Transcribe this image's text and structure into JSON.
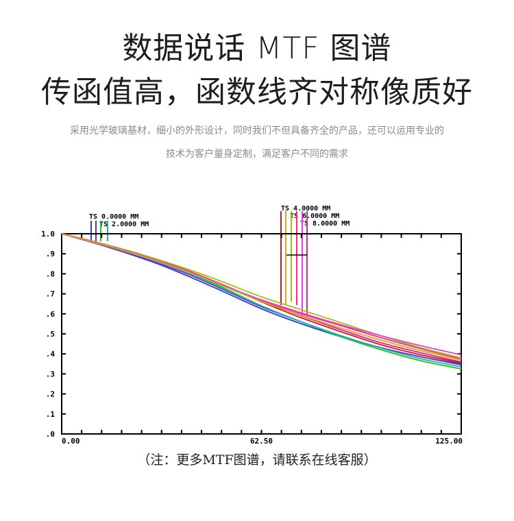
{
  "header": {
    "line1": "数据说话 MTF 图谱",
    "line2": "传函值高，函数线齐对称像质好"
  },
  "description": {
    "line1": "采用光学玻璃基材，细小的外形设计，同时我们不但具备齐全的产品，还可以运用专业的",
    "line2": "技术为客户量身定制，满足客户不同的需求"
  },
  "note": "（注：更多MTF图谱，请联系在线客服）",
  "chart_data": {
    "type": "line",
    "xlim": [
      0,
      125
    ],
    "ylim": [
      0,
      1.0
    ],
    "x_ticks": [
      "0.00",
      "62.50",
      "125.00"
    ],
    "y_ticks": [
      "1.0",
      ".9",
      ".8",
      ".7",
      ".6",
      ".5",
      ".4",
      ".3",
      ".2",
      ".1",
      ".0"
    ],
    "legend_left": [
      "TS 0.0000 MM",
      "TS 2.0000 MM"
    ],
    "legend_right": [
      "TS 4.0000 MM",
      "TS 6.0000 MM",
      "TS 8.0000 MM"
    ],
    "grid": false,
    "x": [
      0,
      10,
      20,
      30,
      40,
      50,
      62.5,
      75,
      87.5,
      100,
      112.5,
      125
    ],
    "series": [
      {
        "color": "#2a3fd6",
        "values": [
          1.0,
          0.955,
          0.905,
          0.85,
          0.785,
          0.715,
          0.625,
          0.55,
          0.485,
          0.43,
          0.385,
          0.35
        ]
      },
      {
        "color": "#7a2ac8",
        "values": [
          1.0,
          0.955,
          0.91,
          0.855,
          0.795,
          0.725,
          0.635,
          0.56,
          0.49,
          0.43,
          0.385,
          0.345
        ]
      },
      {
        "color": "#22c022",
        "values": [
          1.0,
          0.96,
          0.915,
          0.865,
          0.805,
          0.735,
          0.64,
          0.56,
          0.485,
          0.42,
          0.365,
          0.325
        ]
      },
      {
        "color": "#18b8b0",
        "values": [
          1.0,
          0.958,
          0.912,
          0.86,
          0.8,
          0.73,
          0.64,
          0.56,
          0.49,
          0.428,
          0.375,
          0.335
        ]
      },
      {
        "color": "#d01818",
        "values": [
          1.0,
          0.96,
          0.915,
          0.865,
          0.81,
          0.745,
          0.66,
          0.58,
          0.51,
          0.445,
          0.395,
          0.355
        ]
      },
      {
        "color": "#e0208a",
        "values": [
          1.0,
          0.962,
          0.918,
          0.868,
          0.812,
          0.748,
          0.665,
          0.59,
          0.52,
          0.455,
          0.405,
          0.36
        ]
      },
      {
        "color": "#f03070",
        "values": [
          1.0,
          0.96,
          0.916,
          0.866,
          0.81,
          0.746,
          0.668,
          0.6,
          0.54,
          0.48,
          0.425,
          0.375
        ]
      },
      {
        "color": "#a0c010",
        "values": [
          1.0,
          0.962,
          0.92,
          0.872,
          0.82,
          0.762,
          0.685,
          0.62,
          0.555,
          0.49,
          0.43,
          0.38
        ]
      },
      {
        "color": "#e040e0",
        "values": [
          1.0,
          0.96,
          0.915,
          0.865,
          0.808,
          0.745,
          0.67,
          0.605,
          0.545,
          0.49,
          0.44,
          0.395
        ]
      },
      {
        "color": "#e0a020",
        "values": [
          1.0,
          0.958,
          0.912,
          0.862,
          0.806,
          0.742,
          0.662,
          0.592,
          0.528,
          0.468,
          0.415,
          0.37
        ]
      }
    ]
  },
  "colors": {
    "marker_left": [
      "#2a3fd6",
      "#7a2ac8",
      "#22c022",
      "#18b8b0"
    ],
    "marker_right": [
      "#d01818",
      "#e0a020",
      "#a0c010",
      "#f03070",
      "#e040e0"
    ]
  }
}
